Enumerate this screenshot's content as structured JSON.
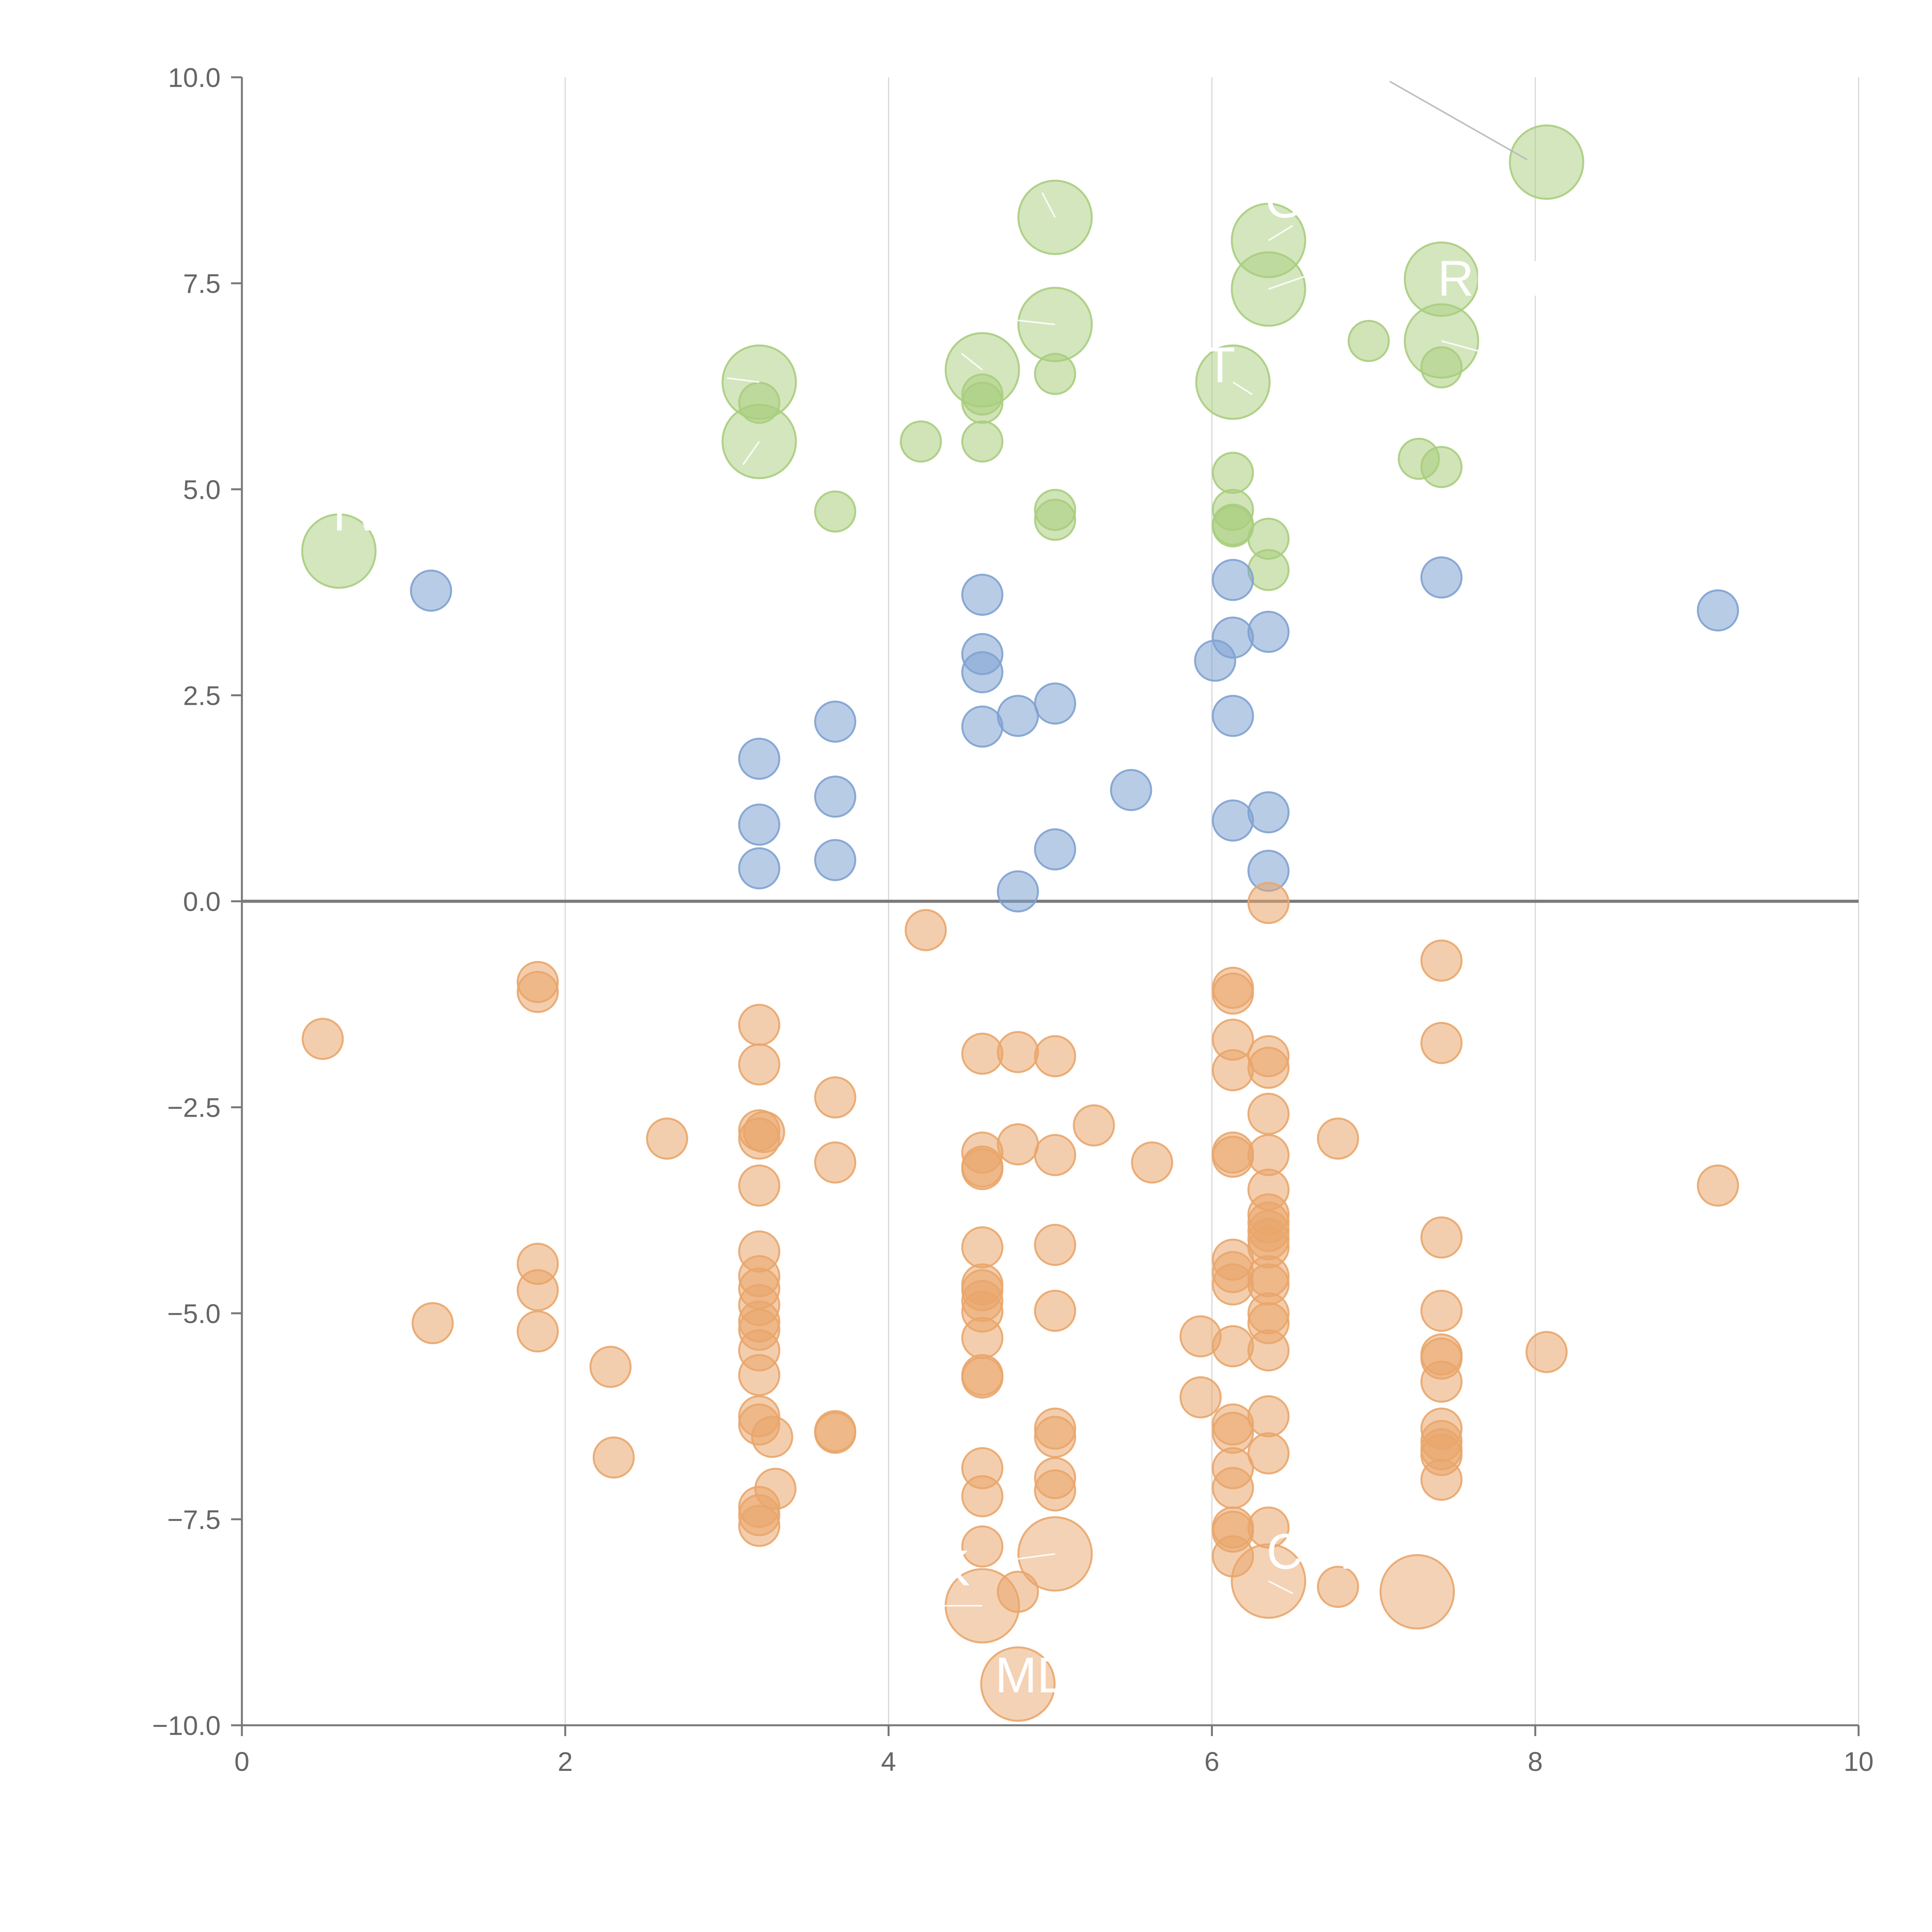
{
  "chart_data": {
    "type": "scatter",
    "title": "",
    "xlabel": "",
    "ylabel": "",
    "xlim": [
      0,
      10
    ],
    "ylim": [
      -10,
      10
    ],
    "grid": "vertical",
    "zero_line": true,
    "x_ticks": [
      "0",
      "2",
      "4",
      "6",
      "8",
      "10"
    ],
    "y_ticks": [
      "10.0",
      "7.5",
      "5.0",
      "2.5",
      "0.0",
      "−2.5",
      "−5.0",
      "−7.5",
      "−10.0"
    ],
    "colors": {
      "green": "#a9cd7e",
      "blue": "#7fa2d2",
      "orange": "#e9a66b"
    },
    "series": [
      {
        "color": "green",
        "points": [
          [
            0.6,
            4.25
          ],
          [
            3.2,
            6.3
          ],
          [
            3.2,
            5.58
          ],
          [
            3.2,
            6.05
          ],
          [
            3.67,
            4.73
          ],
          [
            4.2,
            5.58
          ],
          [
            4.58,
            6.45
          ],
          [
            4.58,
            6.15
          ],
          [
            4.58,
            6.05
          ],
          [
            4.58,
            5.58
          ],
          [
            5.03,
            8.3
          ],
          [
            5.03,
            7.0
          ],
          [
            5.03,
            6.4
          ],
          [
            5.03,
            4.63
          ],
          [
            5.03,
            4.75
          ],
          [
            6.13,
            6.3
          ],
          [
            6.13,
            5.2
          ],
          [
            6.13,
            4.75
          ],
          [
            6.13,
            4.57
          ],
          [
            6.13,
            4.55
          ],
          [
            6.35,
            8.02
          ],
          [
            6.35,
            7.43
          ],
          [
            6.35,
            4.4
          ],
          [
            6.35,
            4.02
          ],
          [
            6.97,
            6.8
          ],
          [
            7.28,
            5.37
          ],
          [
            7.42,
            7.55
          ],
          [
            7.42,
            6.8
          ],
          [
            7.42,
            6.48
          ],
          [
            7.42,
            5.27
          ],
          [
            8.07,
            8.97
          ]
        ],
        "big": [
          [
            0.6,
            4.25
          ],
          [
            3.2,
            6.3
          ],
          [
            3.2,
            5.58
          ],
          [
            4.58,
            6.45
          ],
          [
            5.03,
            8.3
          ],
          [
            5.03,
            7.0
          ],
          [
            6.13,
            6.3
          ],
          [
            6.35,
            8.02
          ],
          [
            6.35,
            7.43
          ],
          [
            7.42,
            7.55
          ],
          [
            7.42,
            6.8
          ],
          [
            8.07,
            8.97
          ]
        ]
      },
      {
        "color": "blue",
        "points": [
          [
            1.17,
            3.77
          ],
          [
            3.2,
            1.73
          ],
          [
            3.2,
            0.93
          ],
          [
            3.2,
            0.4
          ],
          [
            3.67,
            2.18
          ],
          [
            3.67,
            1.27
          ],
          [
            3.67,
            0.5
          ],
          [
            4.58,
            3.72
          ],
          [
            4.58,
            3.0
          ],
          [
            4.58,
            2.78
          ],
          [
            4.58,
            2.12
          ],
          [
            4.8,
            2.25
          ],
          [
            4.8,
            0.12
          ],
          [
            5.03,
            2.4
          ],
          [
            5.03,
            0.63
          ],
          [
            5.5,
            1.35
          ],
          [
            6.02,
            2.92
          ],
          [
            6.13,
            3.9
          ],
          [
            6.13,
            3.2
          ],
          [
            6.13,
            2.25
          ],
          [
            6.13,
            0.98
          ],
          [
            6.35,
            3.27
          ],
          [
            6.35,
            1.08
          ],
          [
            6.35,
            0.37
          ],
          [
            7.42,
            3.93
          ],
          [
            9.13,
            3.53
          ]
        ],
        "big": []
      },
      {
        "color": "orange",
        "points": [
          [
            0.5,
            -1.67
          ],
          [
            1.18,
            -5.12
          ],
          [
            1.83,
            -0.98
          ],
          [
            1.83,
            -1.1
          ],
          [
            1.83,
            -4.4
          ],
          [
            1.83,
            -4.72
          ],
          [
            1.83,
            -5.22
          ],
          [
            2.28,
            -5.65
          ],
          [
            2.3,
            -6.75
          ],
          [
            2.63,
            -2.88
          ],
          [
            3.2,
            -1.5
          ],
          [
            3.2,
            -1.98
          ],
          [
            3.2,
            -2.78
          ],
          [
            3.2,
            -2.88
          ],
          [
            3.2,
            -3.45
          ],
          [
            3.2,
            -4.25
          ],
          [
            3.2,
            -4.55
          ],
          [
            3.2,
            -4.7
          ],
          [
            3.2,
            -4.9
          ],
          [
            3.2,
            -5.1
          ],
          [
            3.2,
            -5.2
          ],
          [
            3.2,
            -5.45
          ],
          [
            3.2,
            -5.75
          ],
          [
            3.2,
            -6.25
          ],
          [
            3.2,
            -6.35
          ],
          [
            3.2,
            -7.35
          ],
          [
            3.2,
            -7.45
          ],
          [
            3.2,
            -7.58
          ],
          [
            3.23,
            -2.8
          ],
          [
            3.28,
            -6.5
          ],
          [
            3.3,
            -7.13
          ],
          [
            3.67,
            -2.38
          ],
          [
            3.67,
            -3.17
          ],
          [
            3.67,
            -6.43
          ],
          [
            3.67,
            -6.45
          ],
          [
            4.23,
            -0.35
          ],
          [
            4.58,
            -1.85
          ],
          [
            4.58,
            -3.05
          ],
          [
            4.58,
            -3.22
          ],
          [
            4.58,
            -3.25
          ],
          [
            4.58,
            -4.2
          ],
          [
            4.58,
            -4.65
          ],
          [
            4.58,
            -4.72
          ],
          [
            4.58,
            -4.85
          ],
          [
            4.58,
            -4.98
          ],
          [
            4.58,
            -5.3
          ],
          [
            4.58,
            -5.75
          ],
          [
            4.58,
            -5.78
          ],
          [
            4.58,
            -6.88
          ],
          [
            4.58,
            -7.22
          ],
          [
            4.58,
            -7.83
          ],
          [
            4.58,
            -8.55
          ],
          [
            4.8,
            -1.83
          ],
          [
            4.8,
            -2.95
          ],
          [
            4.8,
            -8.38
          ],
          [
            4.8,
            -9.5
          ],
          [
            5.03,
            -1.88
          ],
          [
            5.03,
            -3.08
          ],
          [
            5.03,
            -4.17
          ],
          [
            5.03,
            -4.97
          ],
          [
            5.03,
            -6.4
          ],
          [
            5.03,
            -6.5
          ],
          [
            5.03,
            -7.0
          ],
          [
            5.03,
            -7.15
          ],
          [
            5.03,
            -7.92
          ],
          [
            5.27,
            -2.72
          ],
          [
            5.63,
            -3.17
          ],
          [
            5.93,
            -5.28
          ],
          [
            5.93,
            -6.02
          ],
          [
            6.13,
            -1.05
          ],
          [
            6.13,
            -1.12
          ],
          [
            6.13,
            -1.68
          ],
          [
            6.13,
            -2.05
          ],
          [
            6.13,
            -3.05
          ],
          [
            6.13,
            -3.1
          ],
          [
            6.13,
            -4.35
          ],
          [
            6.13,
            -4.5
          ],
          [
            6.13,
            -4.65
          ],
          [
            6.13,
            -5.4
          ],
          [
            6.13,
            -6.35
          ],
          [
            6.13,
            -6.45
          ],
          [
            6.13,
            -6.88
          ],
          [
            6.13,
            -7.12
          ],
          [
            6.13,
            -7.6
          ],
          [
            6.13,
            -7.65
          ],
          [
            6.13,
            -7.95
          ],
          [
            6.35,
            -0.02
          ],
          [
            6.35,
            -1.88
          ],
          [
            6.35,
            -2.02
          ],
          [
            6.35,
            -2.58
          ],
          [
            6.35,
            -3.08
          ],
          [
            6.35,
            -3.5
          ],
          [
            6.35,
            -3.8
          ],
          [
            6.35,
            -3.9
          ],
          [
            6.35,
            -4.0
          ],
          [
            6.35,
            -4.1
          ],
          [
            6.35,
            -4.2
          ],
          [
            6.35,
            -4.55
          ],
          [
            6.35,
            -4.65
          ],
          [
            6.35,
            -5.0
          ],
          [
            6.35,
            -5.12
          ],
          [
            6.35,
            -5.45
          ],
          [
            6.35,
            -6.25
          ],
          [
            6.35,
            -6.7
          ],
          [
            6.35,
            -7.6
          ],
          [
            6.35,
            -8.25
          ],
          [
            6.78,
            -2.88
          ],
          [
            6.78,
            -8.32
          ],
          [
            7.27,
            -8.38
          ],
          [
            7.42,
            -0.72
          ],
          [
            7.42,
            -1.72
          ],
          [
            7.42,
            -4.08
          ],
          [
            7.42,
            -4.97
          ],
          [
            7.42,
            -5.5
          ],
          [
            7.42,
            -5.55
          ],
          [
            7.42,
            -5.83
          ],
          [
            7.42,
            -6.4
          ],
          [
            7.42,
            -6.55
          ],
          [
            7.42,
            -6.65
          ],
          [
            7.42,
            -6.72
          ],
          [
            7.42,
            -7.02
          ],
          [
            8.07,
            -5.47
          ],
          [
            9.13,
            -3.45
          ]
        ],
        "big": [
          [
            4.58,
            -8.55
          ],
          [
            4.8,
            -9.5
          ],
          [
            5.03,
            -7.92
          ],
          [
            6.35,
            -8.25
          ],
          [
            7.27,
            -8.38
          ]
        ]
      }
    ],
    "annotations": [
      {
        "text": "TW",
        "x": 0.75,
        "y": 4.5
      },
      {
        "text": "T",
        "x": 6.05,
        "y": 6.3
      },
      {
        "text": "G",
        "x": 6.45,
        "y": 8.3
      },
      {
        "text": "REIT",
        "x": 7.75,
        "y": 7.35
      },
      {
        "text": "K",
        "x": 4.4,
        "y": -8.3
      },
      {
        "text": "MD",
        "x": 4.9,
        "y": -9.6
      },
      {
        "text": "C",
        "x": 6.45,
        "y": -8.1
      },
      {
        "text": "R",
        "x": 6.9,
        "y": -8.1
      }
    ]
  }
}
